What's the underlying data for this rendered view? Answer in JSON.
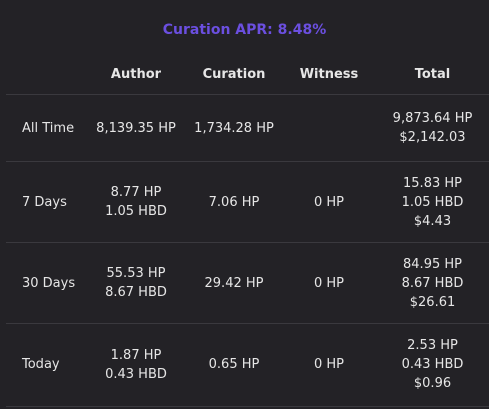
{
  "curation_apr": "Curation APR: 8.48%",
  "headers": {
    "period": "",
    "author": "Author",
    "curation": "Curation",
    "witness": "Witness",
    "total": "Total"
  },
  "rows": [
    {
      "period": "All Time",
      "author": [
        "8,139.35 HP"
      ],
      "curation": [
        "1,734.28 HP"
      ],
      "witness": [],
      "total": [
        "9,873.64 HP",
        "$2,142.03"
      ]
    },
    {
      "period": "7 Days",
      "author": [
        "8.77 HP",
        "1.05 HBD"
      ],
      "curation": [
        "7.06 HP"
      ],
      "witness": [
        "0 HP"
      ],
      "total": [
        "15.83 HP",
        "1.05 HBD",
        "$4.43"
      ]
    },
    {
      "period": "30 Days",
      "author": [
        "55.53 HP",
        "8.67 HBD"
      ],
      "curation": [
        "29.42 HP"
      ],
      "witness": [
        "0 HP"
      ],
      "total": [
        "84.95 HP",
        "8.67 HBD",
        "$26.61"
      ]
    },
    {
      "period": "Today",
      "author": [
        "1.87 HP",
        "0.43 HBD"
      ],
      "curation": [
        "0.65 HP"
      ],
      "witness": [
        "0 HP"
      ],
      "total": [
        "2.53 HP",
        "0.43 HBD",
        "$0.96"
      ]
    }
  ],
  "colors": {
    "background": "#232226",
    "accent": "#6b4fe0",
    "text": "#e6e6e6",
    "divider": "#3a393e"
  }
}
